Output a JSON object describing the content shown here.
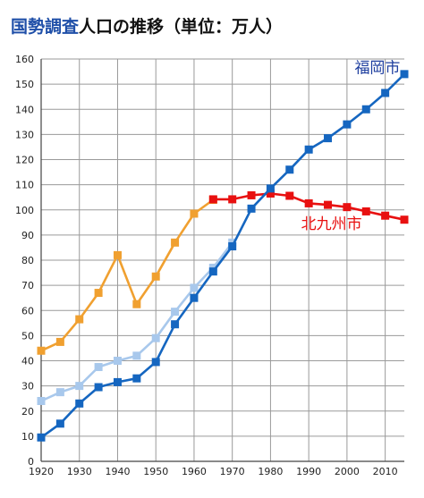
{
  "title": {
    "highlight": "国勢調査",
    "rest": "人口の推移（単位：万人）",
    "highlight_color": "#1f4fa8",
    "rest_color": "#111111"
  },
  "chart_data": {
    "type": "line",
    "title": "国勢調査人口の推移（単位：万人）",
    "xlabel": "",
    "ylabel": "",
    "xlim": [
      1920,
      2015
    ],
    "ylim": [
      0,
      160
    ],
    "x_ticks": [
      1920,
      1930,
      1940,
      1950,
      1960,
      1970,
      1980,
      1990,
      2000,
      2010
    ],
    "y_ticks": [
      0,
      10,
      20,
      30,
      40,
      50,
      60,
      70,
      80,
      90,
      100,
      110,
      120,
      130,
      140,
      150,
      160
    ],
    "grid": true,
    "series": [
      {
        "name": "",
        "color": "#f0a030",
        "x": [
          1920,
          1925,
          1930,
          1935,
          1940,
          1945,
          1950,
          1955,
          1960,
          1965
        ],
        "values": [
          44,
          47.5,
          56.5,
          67,
          82,
          62.5,
          73.5,
          87,
          98.5,
          104
        ]
      },
      {
        "name": "北九州市",
        "color": "#e81010",
        "x": [
          1965,
          1970,
          1975,
          1980,
          1985,
          1990,
          1995,
          2000,
          2005,
          2010,
          2015
        ],
        "values": [
          104.2,
          104.2,
          105.8,
          106.5,
          105.6,
          102.6,
          102,
          101.1,
          99.4,
          97.7,
          96.1
        ]
      },
      {
        "name": "",
        "color": "#a8c8ec",
        "x": [
          1920,
          1925,
          1930,
          1935,
          1940,
          1945,
          1950,
          1955,
          1960,
          1965,
          1970
        ],
        "values": [
          24,
          27.5,
          30,
          37.5,
          40,
          42,
          49,
          59.5,
          69,
          77,
          87
        ]
      },
      {
        "name": "福岡市",
        "color": "#1566c0",
        "x": [
          1920,
          1925,
          1930,
          1935,
          1940,
          1945,
          1950,
          1955,
          1960,
          1965,
          1970,
          1975,
          1980,
          1985,
          1990,
          1995,
          2000,
          2005,
          2010,
          2015
        ],
        "values": [
          9.5,
          15,
          23,
          29.5,
          31.5,
          33,
          39.5,
          54.5,
          65,
          75.5,
          85.5,
          100.5,
          108.5,
          116,
          124,
          128.5,
          134,
          140,
          146.5,
          154
        ]
      }
    ],
    "annotations": [
      {
        "text": "福岡市",
        "x": 2002,
        "y": 154.5,
        "color": "#1f3f9f"
      },
      {
        "text": "北九州市",
        "x": 1988,
        "y": 92.5,
        "color": "#e81010"
      }
    ]
  }
}
